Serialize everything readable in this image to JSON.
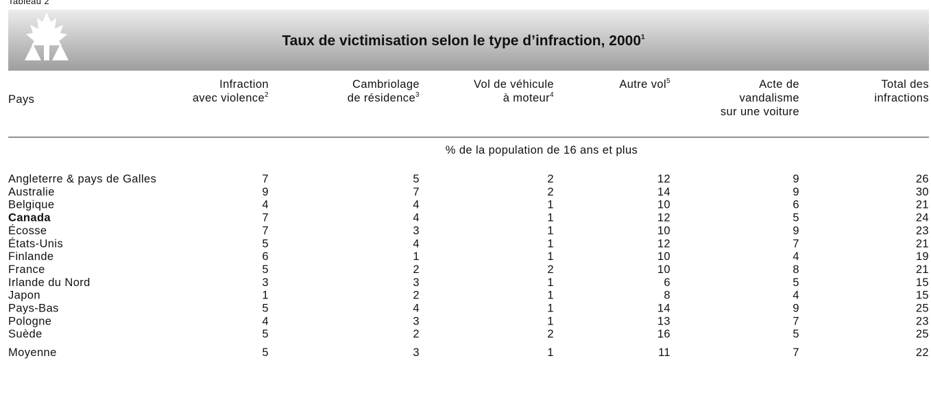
{
  "table_label": "Tableau 2",
  "title": {
    "text": "Taux de victimisation selon le type d’infraction, 2000",
    "note": "1"
  },
  "columns": [
    {
      "lines": [
        "Pays"
      ],
      "note": null
    },
    {
      "lines": [
        "Infraction",
        "avec violence"
      ],
      "note": "2"
    },
    {
      "lines": [
        "Cambriolage",
        "de résidence"
      ],
      "note": "3"
    },
    {
      "lines": [
        "Vol de véhicule",
        "à moteur"
      ],
      "note": "4"
    },
    {
      "lines": [
        "Autre vol"
      ],
      "note": "5"
    },
    {
      "lines": [
        "Acte de",
        "vandalisme",
        "sur une voiture"
      ],
      "note": null
    },
    {
      "lines": [
        "Total des",
        "infractions"
      ],
      "note": null
    }
  ],
  "unit": "% de la population de 16 ans et plus",
  "rows": [
    {
      "name": "Angleterre & pays de Galles",
      "values": [
        7,
        5,
        2,
        12,
        9,
        26
      ]
    },
    {
      "name": "Australie",
      "values": [
        9,
        7,
        2,
        14,
        9,
        30
      ]
    },
    {
      "name": "Belgique",
      "values": [
        4,
        4,
        1,
        10,
        6,
        21
      ]
    },
    {
      "name": "Canada",
      "values": [
        7,
        4,
        1,
        12,
        5,
        24
      ],
      "bold": true
    },
    {
      "name": "Écosse",
      "values": [
        7,
        3,
        1,
        10,
        9,
        23
      ]
    },
    {
      "name": "États-Unis",
      "values": [
        5,
        4,
        1,
        12,
        7,
        21
      ]
    },
    {
      "name": "Finlande",
      "values": [
        6,
        1,
        1,
        10,
        4,
        19
      ]
    },
    {
      "name": "France",
      "values": [
        5,
        2,
        2,
        10,
        8,
        21
      ]
    },
    {
      "name": "Irlande du Nord",
      "values": [
        3,
        3,
        1,
        6,
        5,
        15
      ]
    },
    {
      "name": "Japon",
      "values": [
        1,
        2,
        1,
        8,
        4,
        15
      ]
    },
    {
      "name": "Pays-Bas",
      "values": [
        5,
        4,
        1,
        14,
        9,
        25
      ]
    },
    {
      "name": "Pologne",
      "values": [
        4,
        3,
        1,
        13,
        7,
        23
      ]
    },
    {
      "name": "Suède",
      "values": [
        5,
        2,
        2,
        16,
        5,
        25
      ]
    }
  ],
  "average": {
    "name": "Moyenne",
    "values": [
      5,
      3,
      1,
      11,
      7,
      22
    ]
  }
}
